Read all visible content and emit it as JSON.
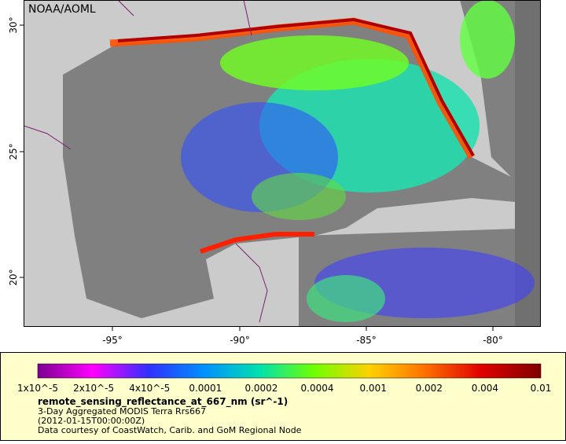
{
  "map": {
    "credit": "NOAA/AOML",
    "lon_ticks": [
      "-95°",
      "-90°",
      "-85°",
      "-80°"
    ],
    "lat_ticks": [
      "30°",
      "25°",
      "20°"
    ],
    "colorbar_labels": [
      "1x10^-5",
      "2x10^-5",
      "4x10^-5",
      "0.0001",
      "0.0002",
      "0.0004",
      "0.001",
      "0.002",
      "0.004",
      "0.01"
    ],
    "legend": {
      "variable": "remote_sensing_reflectance_at_667_nm (sr^-1)",
      "dataset": "3-Day Aggregated MODIS Terra Rrs667",
      "time": "(2012-01-15T00:00:00Z)",
      "source": "Data courtesy of CoastWatch, Carib. and GoM Regional Node"
    }
  }
}
